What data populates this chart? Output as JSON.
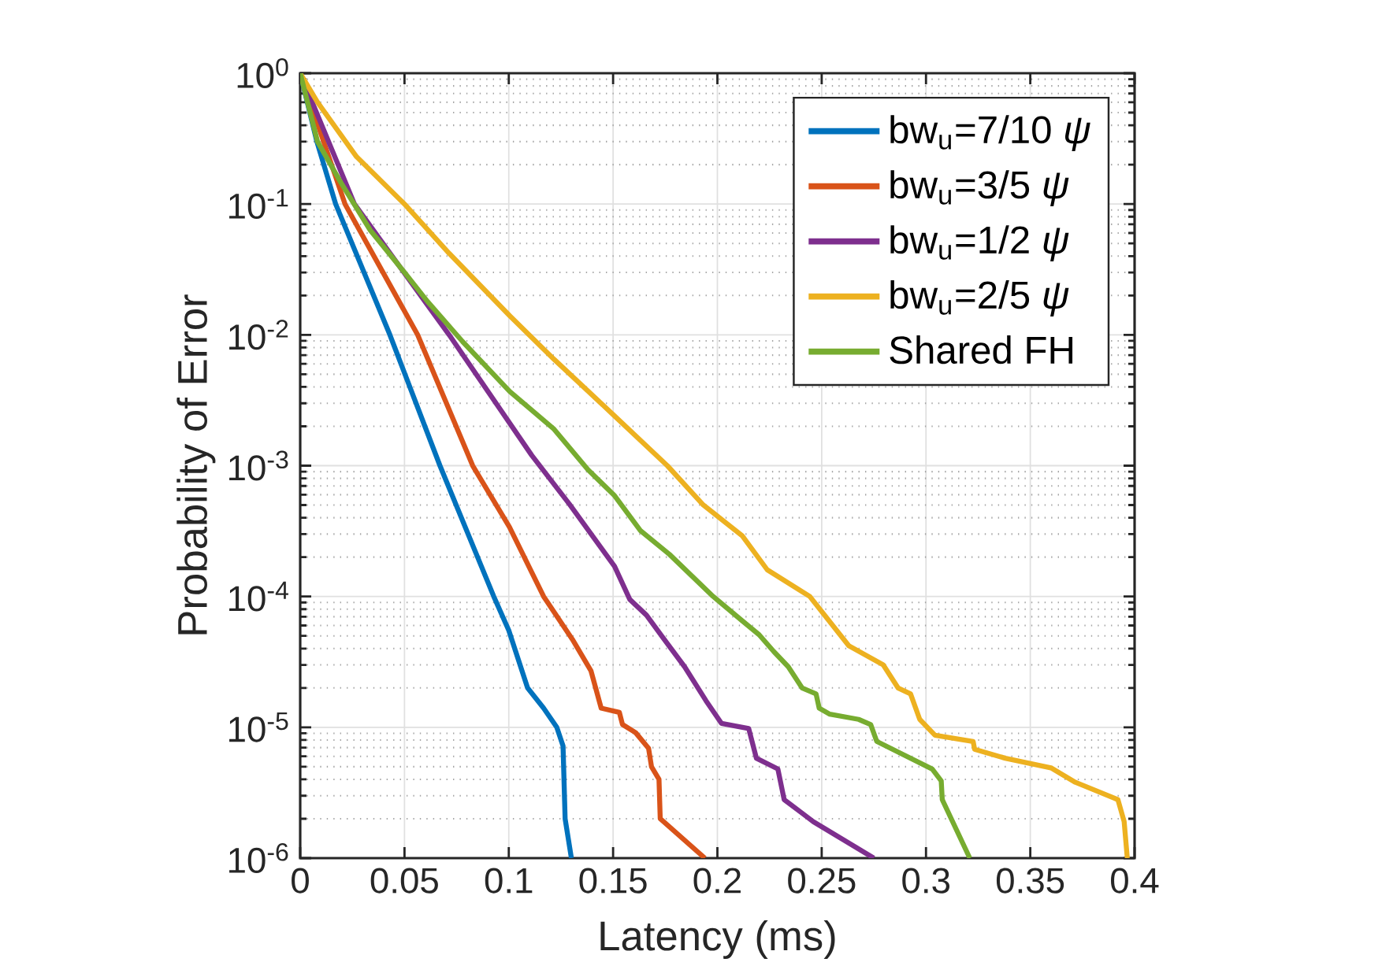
{
  "chart_data": {
    "type": "line",
    "xlabel": "Latency (ms)",
    "ylabel": "Probability of Error",
    "log": "y",
    "grid": true,
    "legend": "top right",
    "marker": "none",
    "line_style": "solid",
    "xlim": [
      0,
      0.4
    ],
    "ylim": [
      1e-06,
      1
    ],
    "xticks": [
      0,
      0.05,
      0.1,
      0.15,
      0.2,
      0.25,
      0.3,
      0.35,
      0.4
    ],
    "yticks": [
      {
        "value": 1e-06,
        "label": "10$^{-6}$"
      },
      {
        "value": 1e-05,
        "label": "10$^{-5}$"
      },
      {
        "value": 0.0001,
        "label": "10$^{-4}$"
      },
      {
        "value": 0.001,
        "label": "10$^{-3}$"
      },
      {
        "value": 0.01,
        "label": "10$^{-2}$"
      },
      {
        "value": 0.1,
        "label": "10$^{-1}$"
      },
      {
        "value": 1,
        "label": "10$^{0}$"
      }
    ],
    "series": [
      {
        "name": "bw$_{u}$=7/10 *ψ*",
        "color": "#0072bd",
        "x": [
          0,
          0.008,
          0.017,
          0.043,
          0.067,
          0.0928,
          0.1,
          0.109,
          0.1167,
          0.123,
          0.126,
          0.127,
          0.13
        ],
        "values": [
          1,
          0.3,
          0.1,
          0.01,
          0.001,
          0.0001,
          5.5e-05,
          2e-05,
          1.4e-05,
          1e-05,
          7.2e-06,
          2e-06,
          1e-06
        ]
      },
      {
        "name": "bw$_{u}$=3/5 *ψ*",
        "color": "#d95319",
        "x": [
          0,
          0.0215,
          0.0563,
          0.0827,
          0.1003,
          0.1167,
          0.1305,
          0.1394,
          0.1443,
          0.153,
          0.1545,
          0.1608,
          0.167,
          0.1684,
          0.172,
          0.1726,
          0.194
        ],
        "values": [
          1,
          0.1,
          0.01,
          0.001,
          0.00034,
          0.0001,
          4.7e-05,
          2.7e-05,
          1.4e-05,
          1.3e-05,
          1.05e-05,
          9.1e-06,
          6.9e-06,
          5e-06,
          4e-06,
          2e-06,
          1e-06
        ]
      },
      {
        "name": "bw$_{u}$=1/2 *ψ*",
        "color": "#7e2f8e",
        "x": [
          0,
          0.026,
          0.0714,
          0.111,
          0.129,
          0.1507,
          0.158,
          0.166,
          0.1745,
          0.1843,
          0.1945,
          0.202,
          0.215,
          0.2187,
          0.229,
          0.232,
          0.246,
          0.275
        ],
        "values": [
          1,
          0.1,
          0.01,
          0.0012,
          0.00051,
          0.00017,
          9.5e-05,
          7.2e-05,
          4.7e-05,
          2.9e-05,
          1.6e-05,
          1.07e-05,
          9.8e-06,
          5.8e-06,
          4.8e-06,
          2.8e-06,
          1.9e-06,
          1e-06
        ]
      },
      {
        "name": "bw$_{u}$=2/5 *ψ*",
        "color": "#edb120",
        "x": [
          0,
          0.0083,
          0.027,
          0.05,
          0.0714,
          0.1004,
          0.1217,
          0.1495,
          0.176,
          0.1933,
          0.212,
          0.2239,
          0.2443,
          0.263,
          0.2795,
          0.2866,
          0.2926,
          0.297,
          0.3043,
          0.3226,
          0.3233,
          0.338,
          0.3599,
          0.3716,
          0.392,
          0.395,
          0.3965
        ],
        "values": [
          1,
          0.6,
          0.23,
          0.1,
          0.042,
          0.014,
          0.0065,
          0.0025,
          0.001,
          0.0005,
          0.00029,
          0.00016,
          0.0001,
          4.2e-05,
          3e-05,
          2e-05,
          1.8e-05,
          1.15e-05,
          8.7e-06,
          7.8e-06,
          6.8e-06,
          5.8e-06,
          4.9e-06,
          3.8e-06,
          2.8e-06,
          1.9e-06,
          1e-06
        ]
      },
      {
        "name": "Shared FH",
        "color": "#77ac30",
        "x": [
          0,
          0.0083,
          0.0196,
          0.0336,
          0.05,
          0.061,
          0.0778,
          0.1004,
          0.1217,
          0.138,
          0.1507,
          0.163,
          0.177,
          0.198,
          0.212,
          0.22,
          0.227,
          0.234,
          0.2406,
          0.2473,
          0.2488,
          0.2539,
          0.2677,
          0.2735,
          0.2764,
          0.303,
          0.3073,
          0.3078,
          0.321
        ],
        "values": [
          1,
          0.3,
          0.145,
          0.063,
          0.03,
          0.018,
          0.0089,
          0.0037,
          0.0019,
          0.00093,
          0.00059,
          0.00032,
          0.00021,
          0.0001,
          6.5e-05,
          5.1e-05,
          3.8e-05,
          2.9e-05,
          2e-05,
          1.8e-05,
          1.4e-05,
          1.26e-05,
          1.15e-05,
          1.05e-05,
          7.8e-06,
          4.8e-06,
          3.9e-06,
          2.8e-06,
          1e-06
        ]
      }
    ]
  }
}
